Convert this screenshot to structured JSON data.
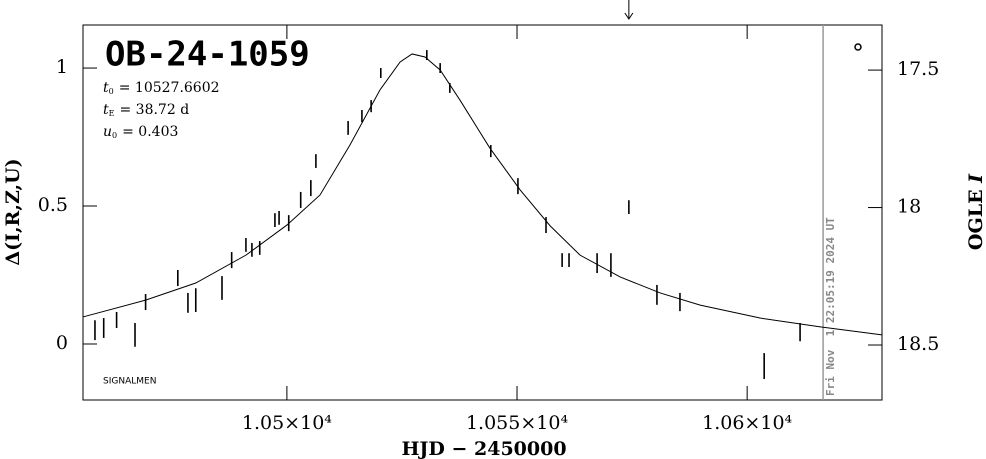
{
  "chart_data": {
    "type": "errorbar",
    "title": "OB-24-1059",
    "parameters": [
      {
        "symbol": "t",
        "subscript": "0",
        "text": "= 10527.6602"
      },
      {
        "symbol": "t",
        "subscript": "E",
        "text": "= 38.72 d"
      },
      {
        "symbol": "u",
        "subscript": "0",
        "text": "= 0.403"
      }
    ],
    "xlabel": "HJD − 2450000",
    "ylabel": "Δ(I,R,Z,U)",
    "y2label_text": "OGLE ",
    "y2label_italic": "I",
    "footer_left": "SIGNALMEN",
    "timestamp": "Fri Nov  1 22:05:19 2024 UT",
    "timestamp_x": 10616.5,
    "arrow_x": 10574.3,
    "color": "#000000",
    "x": [
      10458.3,
      10460.2,
      10463.0,
      10467.0,
      10469.3,
      10476.3,
      10478.5,
      10480.2,
      10485.9,
      10488.0,
      10491.1,
      10492.4,
      10494.1,
      10497.4,
      10498.3,
      10500.4,
      10503.0,
      10505.2,
      10506.3,
      10513.3,
      10516.3,
      10518.3,
      10520.4,
      10530.4,
      10533.3,
      10535.4,
      10544.3,
      10550.2,
      10556.3,
      10559.8,
      10561.3,
      10567.4,
      10570.4,
      10574.3,
      10580.4,
      10585.4,
      10603.7,
      10611.5
    ],
    "values": [
      0.05,
      0.058,
      0.087,
      0.033,
      0.152,
      0.239,
      0.149,
      0.159,
      0.203,
      0.304,
      0.359,
      0.341,
      0.348,
      0.449,
      0.457,
      0.438,
      0.522,
      0.565,
      0.663,
      0.783,
      0.826,
      0.862,
      0.982,
      1.047,
      1.0,
      0.928,
      0.699,
      0.572,
      0.431,
      0.304,
      0.304,
      0.293,
      0.286,
      0.496,
      0.178,
      0.152,
      -0.08,
      0.043
    ],
    "errors": [
      0.036,
      0.036,
      0.029,
      0.043,
      0.029,
      0.029,
      0.036,
      0.043,
      0.043,
      0.029,
      0.025,
      0.025,
      0.025,
      0.025,
      0.025,
      0.029,
      0.029,
      0.029,
      0.025,
      0.025,
      0.022,
      0.022,
      0.018,
      0.018,
      0.018,
      0.018,
      0.022,
      0.029,
      0.029,
      0.025,
      0.025,
      0.036,
      0.043,
      0.025,
      0.036,
      0.033,
      0.047,
      0.033
    ],
    "model_x": [
      10455.7,
      10469.3,
      10480.2,
      10491.1,
      10500,
      10507.2,
      10513.7,
      10520.2,
      10524.6,
      10527.2,
      10530,
      10533.3,
      10537.6,
      10544.1,
      10550.7,
      10557.2,
      10563.7,
      10572.4,
      10581.1,
      10589.8,
      10602.8,
      10615.9,
      10629.3
    ],
    "model_y": [
      0.098,
      0.159,
      0.221,
      0.322,
      0.431,
      0.54,
      0.721,
      0.92,
      1.022,
      1.051,
      1.04,
      0.993,
      0.884,
      0.71,
      0.558,
      0.428,
      0.322,
      0.243,
      0.185,
      0.141,
      0.094,
      0.062,
      0.033
    ],
    "xlim": [
      10455.7,
      10629.3
    ],
    "ylim": [
      -0.203,
      1.156
    ],
    "y2lim": [
      18.7,
      17.336
    ],
    "xticks": [
      {
        "value": 10500,
        "label": "1.05×10⁴"
      },
      {
        "value": 10550,
        "label": "1.055×10⁴"
      },
      {
        "value": 10600,
        "label": "1.06×10⁴"
      }
    ],
    "yticks": [
      0,
      0.5,
      1
    ],
    "y2ticks": [
      17.5,
      18,
      18.5
    ]
  }
}
